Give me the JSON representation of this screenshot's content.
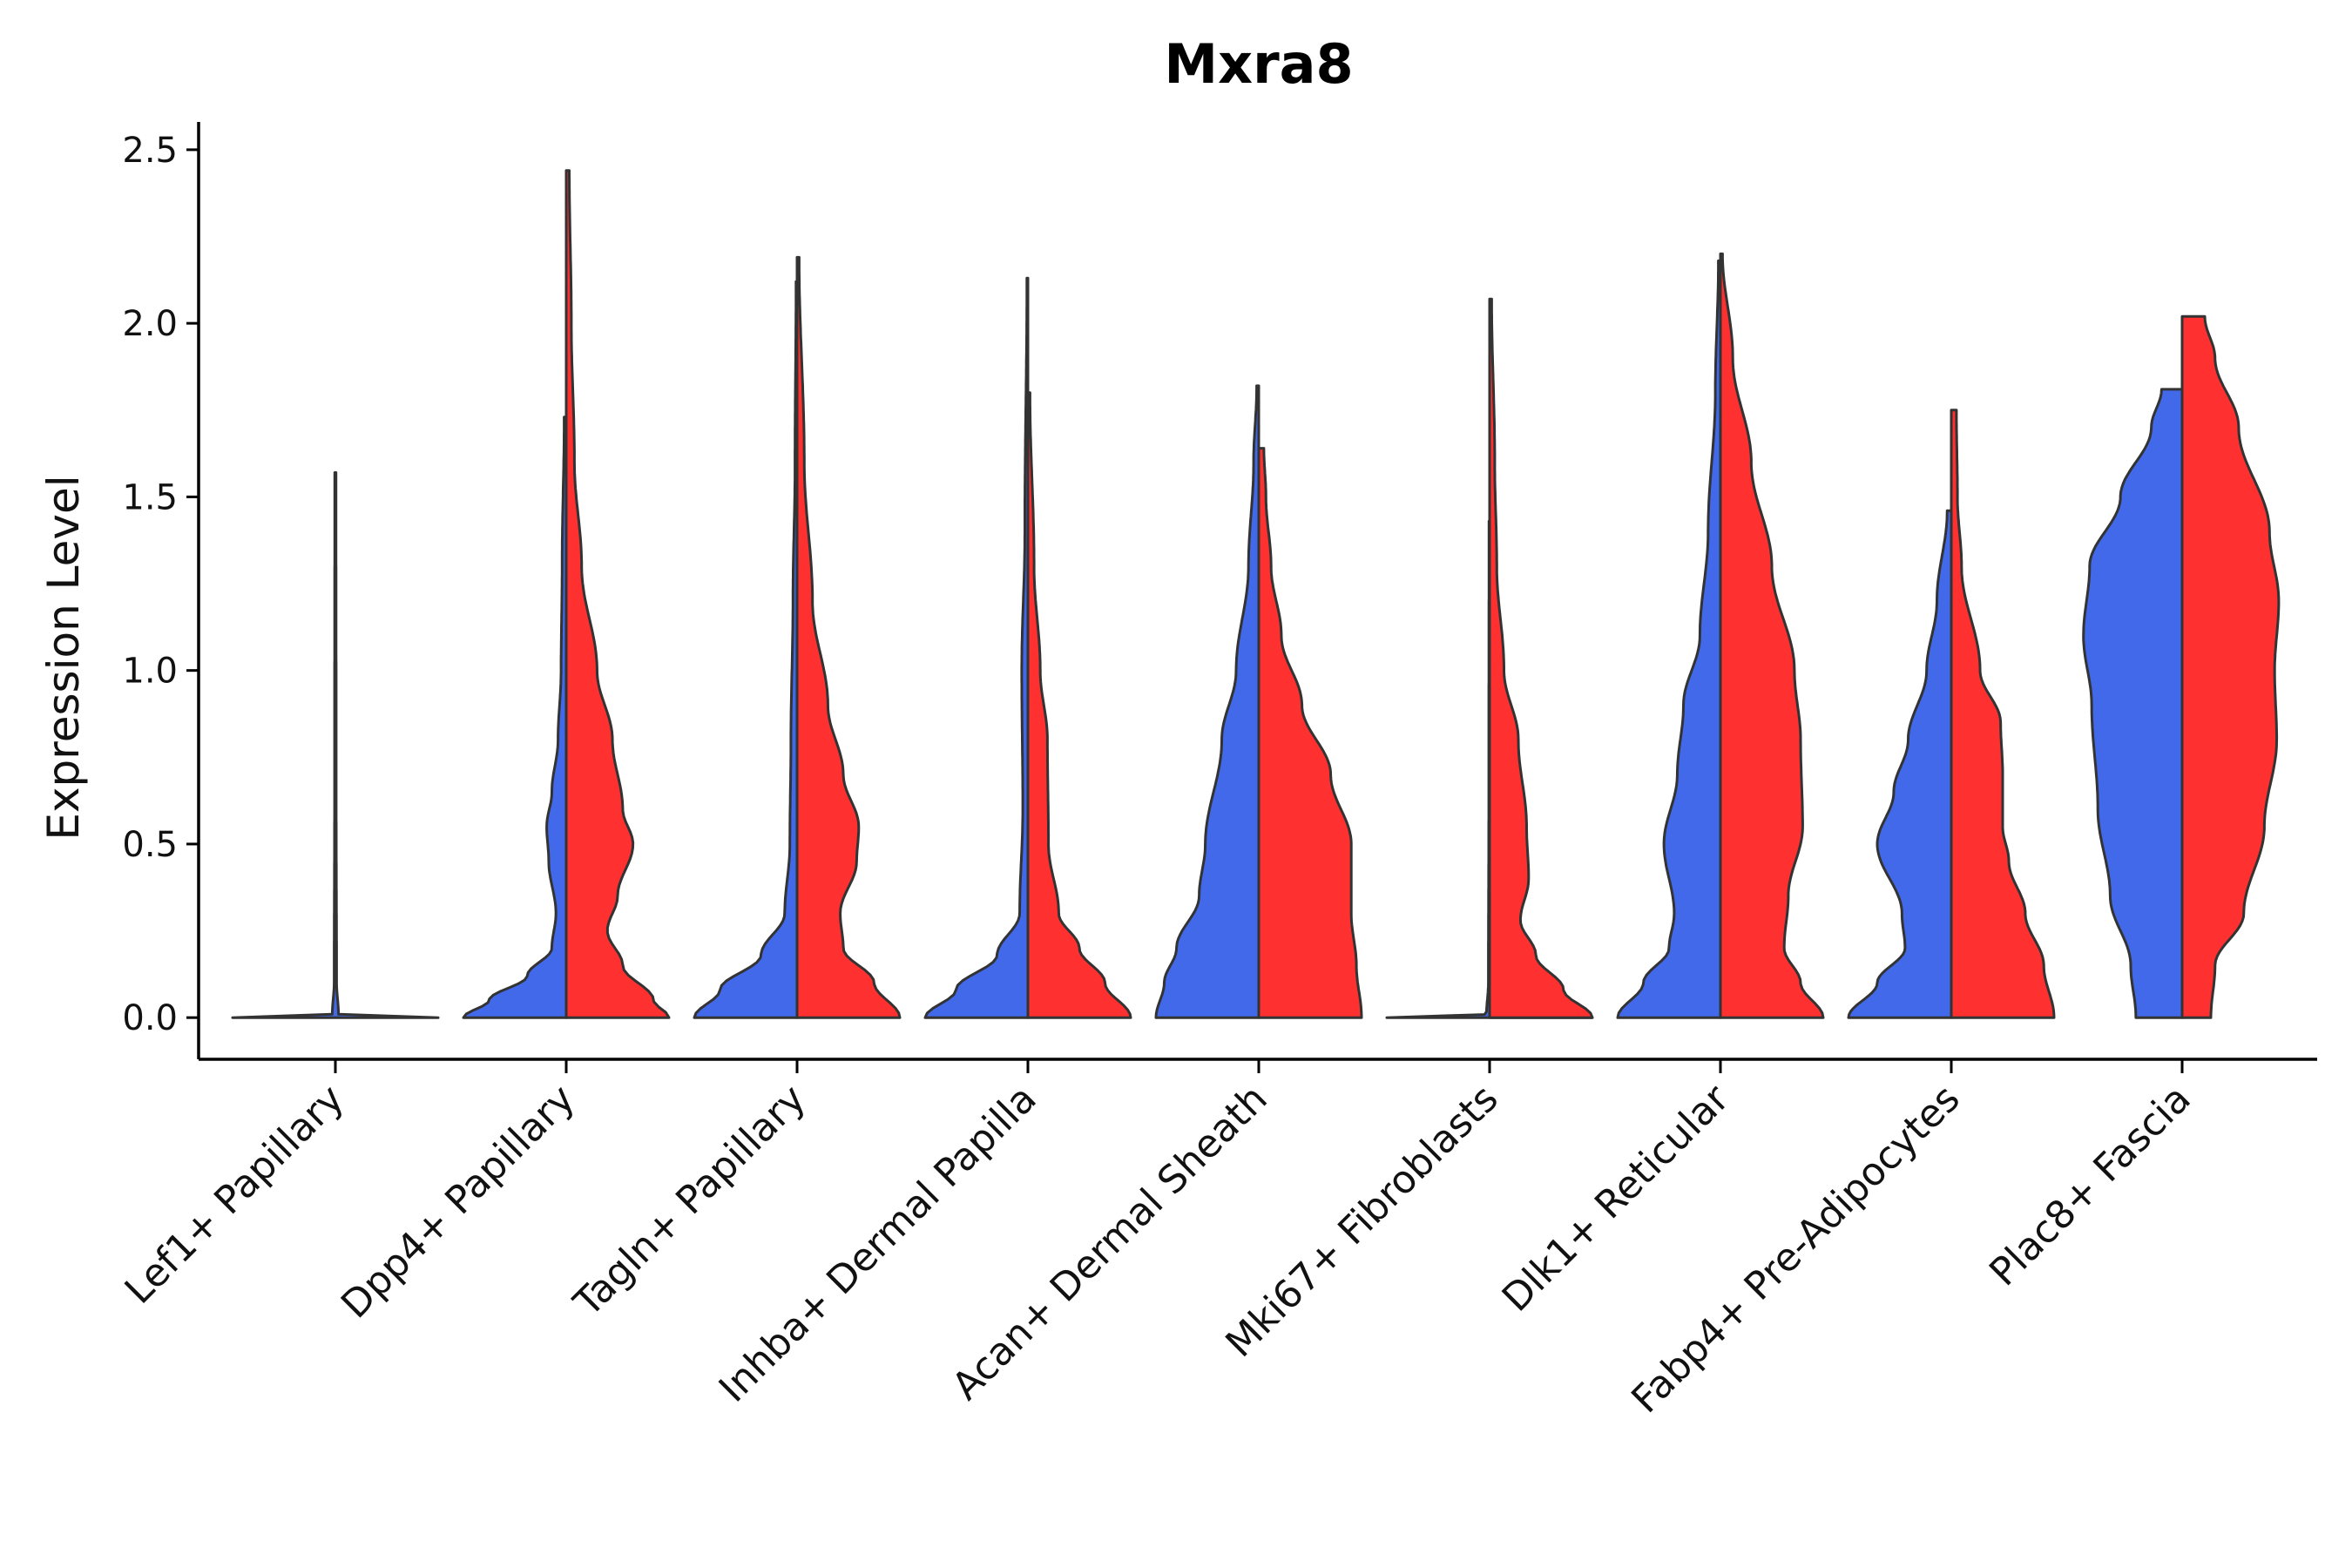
{
  "chart_data": {
    "type": "violin",
    "title": "Mxra8",
    "ylabel": "Expression Level",
    "xlabel": "",
    "ylim": [
      -0.12,
      2.58
    ],
    "yticks": [
      0.0,
      0.5,
      1.0,
      1.5,
      2.0,
      2.5
    ],
    "ytick_labels": [
      "0.0",
      "0.5",
      "1.0",
      "1.5",
      "2.0",
      "2.5"
    ],
    "legend": "none",
    "colors": {
      "group_a": "#4169E9",
      "group_b": "#FF3030",
      "outline": "#333333"
    },
    "categories": [
      "Lef1+ Papillary",
      "Dpp4+ Papillary",
      "Tagln+ Papillary",
      "Inhba+ Dermal Papilla",
      "Acan+ Dermal Sheath",
      "Mki67+ Fibroblasts",
      "Dlk1+ Reticular",
      "Fabp4+ Pre-Adipocytes",
      "Plac8+ Fascia"
    ],
    "violins": [
      {
        "category": 0,
        "side": "center",
        "color": "#4169E9",
        "max": 1.57,
        "profile": [
          [
            0,
            1
          ],
          [
            0.005,
            0.2
          ],
          [
            0.01,
            0.03
          ],
          [
            0.1,
            0.012
          ],
          [
            0.6,
            0.008
          ],
          [
            1.57,
            0.006
          ]
        ]
      },
      {
        "category": 1,
        "side": "left",
        "color": "#4169E9",
        "max": 1.73,
        "profile": [
          [
            0,
            1
          ],
          [
            0.05,
            0.75
          ],
          [
            0.12,
            0.38
          ],
          [
            0.2,
            0.14
          ],
          [
            0.3,
            0.1
          ],
          [
            0.45,
            0.17
          ],
          [
            0.55,
            0.19
          ],
          [
            0.65,
            0.14
          ],
          [
            0.8,
            0.08
          ],
          [
            1.0,
            0.05
          ],
          [
            1.3,
            0.04
          ],
          [
            1.73,
            0.02
          ]
        ]
      },
      {
        "category": 1,
        "side": "right",
        "color": "#FF3030",
        "max": 2.44,
        "profile": [
          [
            0,
            1
          ],
          [
            0.05,
            0.85
          ],
          [
            0.15,
            0.55
          ],
          [
            0.25,
            0.4
          ],
          [
            0.35,
            0.5
          ],
          [
            0.5,
            0.65
          ],
          [
            0.6,
            0.55
          ],
          [
            0.8,
            0.45
          ],
          [
            1.0,
            0.3
          ],
          [
            1.3,
            0.15
          ],
          [
            1.6,
            0.08
          ],
          [
            2.0,
            0.05
          ],
          [
            2.44,
            0.03
          ]
        ]
      },
      {
        "category": 2,
        "side": "left",
        "color": "#4169E9",
        "max": 2.12,
        "profile": [
          [
            0,
            1
          ],
          [
            0.08,
            0.75
          ],
          [
            0.18,
            0.35
          ],
          [
            0.3,
            0.12
          ],
          [
            0.5,
            0.07
          ],
          [
            0.8,
            0.06
          ],
          [
            1.2,
            0.04
          ],
          [
            1.6,
            0.02
          ],
          [
            2.12,
            0.01
          ]
        ]
      },
      {
        "category": 2,
        "side": "right",
        "color": "#FF3030",
        "max": 2.19,
        "profile": [
          [
            0,
            1
          ],
          [
            0.1,
            0.75
          ],
          [
            0.2,
            0.45
          ],
          [
            0.3,
            0.42
          ],
          [
            0.45,
            0.58
          ],
          [
            0.55,
            0.6
          ],
          [
            0.7,
            0.45
          ],
          [
            0.9,
            0.3
          ],
          [
            1.2,
            0.15
          ],
          [
            1.6,
            0.07
          ],
          [
            2.19,
            0.02
          ]
        ]
      },
      {
        "category": 3,
        "side": "left",
        "color": "#4169E9",
        "max": 2.13,
        "profile": [
          [
            0,
            1
          ],
          [
            0.08,
            0.7
          ],
          [
            0.18,
            0.3
          ],
          [
            0.3,
            0.08
          ],
          [
            0.6,
            0.05
          ],
          [
            1.0,
            0.06
          ],
          [
            1.4,
            0.03
          ],
          [
            2.13,
            0.01
          ]
        ]
      },
      {
        "category": 3,
        "side": "right",
        "color": "#FF3030",
        "max": 1.8,
        "profile": [
          [
            0,
            1
          ],
          [
            0.1,
            0.75
          ],
          [
            0.2,
            0.5
          ],
          [
            0.3,
            0.3
          ],
          [
            0.5,
            0.2
          ],
          [
            0.8,
            0.19
          ],
          [
            1.0,
            0.12
          ],
          [
            1.3,
            0.06
          ],
          [
            1.8,
            0.02
          ]
        ]
      },
      {
        "category": 4,
        "side": "left",
        "color": "#4169E9",
        "max": 1.82,
        "profile": [
          [
            0,
            1
          ],
          [
            0.1,
            0.92
          ],
          [
            0.2,
            0.8
          ],
          [
            0.35,
            0.58
          ],
          [
            0.5,
            0.52
          ],
          [
            0.8,
            0.36
          ],
          [
            1.0,
            0.22
          ],
          [
            1.3,
            0.1
          ],
          [
            1.6,
            0.05
          ],
          [
            1.82,
            0.02
          ]
        ]
      },
      {
        "category": 4,
        "side": "right",
        "color": "#FF3030",
        "max": 1.64,
        "profile": [
          [
            0,
            1
          ],
          [
            0.15,
            0.95
          ],
          [
            0.3,
            0.9
          ],
          [
            0.5,
            0.9
          ],
          [
            0.7,
            0.7
          ],
          [
            0.9,
            0.42
          ],
          [
            1.1,
            0.22
          ],
          [
            1.3,
            0.12
          ],
          [
            1.5,
            0.07
          ],
          [
            1.64,
            0.05
          ]
        ]
      },
      {
        "category": 5,
        "side": "center",
        "color": "#4169E9",
        "max": 1.43,
        "profile": [
          [
            0,
            1
          ],
          [
            0.005,
            0.2
          ],
          [
            0.01,
            0.03
          ],
          [
            0.1,
            0.012
          ],
          [
            0.6,
            0.008
          ],
          [
            1.43,
            0.006
          ]
        ]
      },
      {
        "category": 5,
        "side": "right",
        "color": "#FF3030",
        "max": 2.07,
        "profile": [
          [
            0,
            1
          ],
          [
            0.08,
            0.72
          ],
          [
            0.18,
            0.45
          ],
          [
            0.28,
            0.3
          ],
          [
            0.4,
            0.38
          ],
          [
            0.55,
            0.36
          ],
          [
            0.8,
            0.28
          ],
          [
            1.0,
            0.14
          ],
          [
            1.3,
            0.07
          ],
          [
            1.6,
            0.05
          ],
          [
            2.07,
            0.02
          ]
        ]
      },
      {
        "category": 6,
        "side": "left",
        "color": "#4169E9",
        "max": 2.18,
        "profile": [
          [
            0,
            1
          ],
          [
            0.1,
            0.75
          ],
          [
            0.2,
            0.5
          ],
          [
            0.3,
            0.45
          ],
          [
            0.5,
            0.55
          ],
          [
            0.7,
            0.42
          ],
          [
            0.9,
            0.36
          ],
          [
            1.1,
            0.2
          ],
          [
            1.4,
            0.12
          ],
          [
            1.8,
            0.05
          ],
          [
            2.18,
            0.02
          ]
        ]
      },
      {
        "category": 6,
        "side": "right",
        "color": "#FF3030",
        "max": 2.2,
        "profile": [
          [
            0,
            1
          ],
          [
            0.1,
            0.78
          ],
          [
            0.2,
            0.62
          ],
          [
            0.35,
            0.66
          ],
          [
            0.55,
            0.8
          ],
          [
            0.8,
            0.78
          ],
          [
            1.0,
            0.72
          ],
          [
            1.3,
            0.5
          ],
          [
            1.6,
            0.3
          ],
          [
            1.9,
            0.12
          ],
          [
            2.2,
            0.02
          ]
        ]
      },
      {
        "category": 7,
        "side": "left",
        "color": "#4169E9",
        "max": 1.46,
        "profile": [
          [
            0,
            1
          ],
          [
            0.1,
            0.72
          ],
          [
            0.2,
            0.45
          ],
          [
            0.3,
            0.48
          ],
          [
            0.5,
            0.72
          ],
          [
            0.65,
            0.56
          ],
          [
            0.8,
            0.42
          ],
          [
            1.0,
            0.24
          ],
          [
            1.2,
            0.14
          ],
          [
            1.46,
            0.04
          ]
        ]
      },
      {
        "category": 7,
        "side": "right",
        "color": "#FF3030",
        "max": 1.75,
        "profile": [
          [
            0,
            1
          ],
          [
            0.15,
            0.9
          ],
          [
            0.3,
            0.72
          ],
          [
            0.45,
            0.56
          ],
          [
            0.55,
            0.5
          ],
          [
            0.7,
            0.5
          ],
          [
            0.85,
            0.48
          ],
          [
            1.0,
            0.28
          ],
          [
            1.3,
            0.1
          ],
          [
            1.5,
            0.06
          ],
          [
            1.75,
            0.05
          ]
        ]
      },
      {
        "category": 8,
        "side": "left",
        "color": "#4169E9",
        "max": 1.81,
        "profile": [
          [
            0,
            0.45
          ],
          [
            0.15,
            0.5
          ],
          [
            0.35,
            0.7
          ],
          [
            0.6,
            0.82
          ],
          [
            0.9,
            0.88
          ],
          [
            1.1,
            0.96
          ],
          [
            1.3,
            0.9
          ],
          [
            1.5,
            0.6
          ],
          [
            1.7,
            0.3
          ],
          [
            1.81,
            0.2
          ]
        ]
      },
      {
        "category": 8,
        "side": "right",
        "color": "#FF3030",
        "max": 2.02,
        "profile": [
          [
            0,
            0.28
          ],
          [
            0.15,
            0.32
          ],
          [
            0.3,
            0.6
          ],
          [
            0.55,
            0.8
          ],
          [
            0.8,
            0.92
          ],
          [
            1.0,
            0.9
          ],
          [
            1.2,
            0.94
          ],
          [
            1.4,
            0.85
          ],
          [
            1.7,
            0.55
          ],
          [
            1.9,
            0.32
          ],
          [
            2.02,
            0.22
          ]
        ]
      }
    ]
  }
}
